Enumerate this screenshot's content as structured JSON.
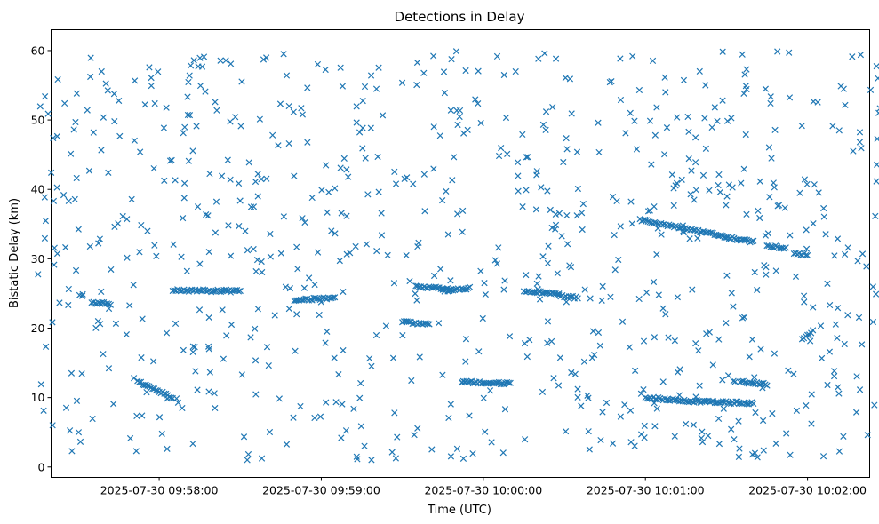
{
  "chart_data": {
    "type": "scatter",
    "title": "Detections in Delay",
    "xlabel": "Time (UTC)",
    "ylabel": "Bistatic Delay (km)",
    "x_range": [
      "2025-07-30 09:57:15",
      "2025-07-30 10:02:27"
    ],
    "xlim": [
      "2025-07-30 09:57:20",
      "2025-07-30 10:02:23"
    ],
    "ylim": [
      -1.5,
      63
    ],
    "x_ticks": [
      "2025-07-30 09:58:00",
      "2025-07-30 09:59:00",
      "2025-07-30 10:00:00",
      "2025-07-30 10:01:00",
      "2025-07-30 10:02:00"
    ],
    "y_ticks": [
      0,
      10,
      20,
      30,
      40,
      50,
      60
    ],
    "grid": false,
    "legend": "none",
    "marker": "x",
    "color": "#1f77b4",
    "point_count": 1200,
    "tracks": [
      {
        "x_start": "2025-07-30 09:57:35",
        "x_end": "2025-07-30 09:57:42",
        "y_start": 23.7,
        "y_end": 23.5
      },
      {
        "x_start": "2025-07-30 09:57:52",
        "x_end": "2025-07-30 09:58:05",
        "y_start": 12.3,
        "y_end": 10.0
      },
      {
        "x_start": "2025-07-30 09:58:05",
        "x_end": "2025-07-30 09:58:30",
        "y_start": 25.5,
        "y_end": 25.3
      },
      {
        "x_start": "2025-07-30 09:58:50",
        "x_end": "2025-07-30 09:59:05",
        "y_start": 24.0,
        "y_end": 24.4
      },
      {
        "x_start": "2025-07-30 09:59:30",
        "x_end": "2025-07-30 09:59:40",
        "y_start": 20.9,
        "y_end": 20.5
      },
      {
        "x_start": "2025-07-30 09:59:35",
        "x_end": "2025-07-30 09:59:48",
        "y_start": 26.0,
        "y_end": 25.6
      },
      {
        "x_start": "2025-07-30 09:59:45",
        "x_end": "2025-07-30 09:59:55",
        "y_start": 25.4,
        "y_end": 25.8
      },
      {
        "x_start": "2025-07-30 09:59:52",
        "x_end": "2025-07-30 10:00:10",
        "y_start": 12.3,
        "y_end": 12.0
      },
      {
        "x_start": "2025-07-30 10:00:15",
        "x_end": "2025-07-30 10:00:28",
        "y_start": 25.3,
        "y_end": 25.0
      },
      {
        "x_start": "2025-07-30 10:00:28",
        "x_end": "2025-07-30 10:00:35",
        "y_start": 24.6,
        "y_end": 24.4
      },
      {
        "x_start": "2025-07-30 10:00:58",
        "x_end": "2025-07-30 10:01:40",
        "y_start": 35.6,
        "y_end": 32.4
      },
      {
        "x_start": "2025-07-30 10:01:00",
        "x_end": "2025-07-30 10:01:15",
        "y_start": 10.0,
        "y_end": 9.5
      },
      {
        "x_start": "2025-07-30 10:01:15",
        "x_end": "2025-07-30 10:01:40",
        "y_start": 9.5,
        "y_end": 9.2
      },
      {
        "x_start": "2025-07-30 10:01:35",
        "x_end": "2025-07-30 10:01:45",
        "y_start": 12.3,
        "y_end": 11.9
      },
      {
        "x_start": "2025-07-30 10:01:45",
        "x_end": "2025-07-30 10:01:52",
        "y_start": 31.9,
        "y_end": 31.5
      },
      {
        "x_start": "2025-07-30 10:01:55",
        "x_end": "2025-07-30 10:02:00",
        "y_start": 30.9,
        "y_end": 30.5
      },
      {
        "x_start": "2025-07-30 10:01:58",
        "x_end": "2025-07-30 10:02:02",
        "y_start": 18.5,
        "y_end": 19.6
      }
    ]
  }
}
